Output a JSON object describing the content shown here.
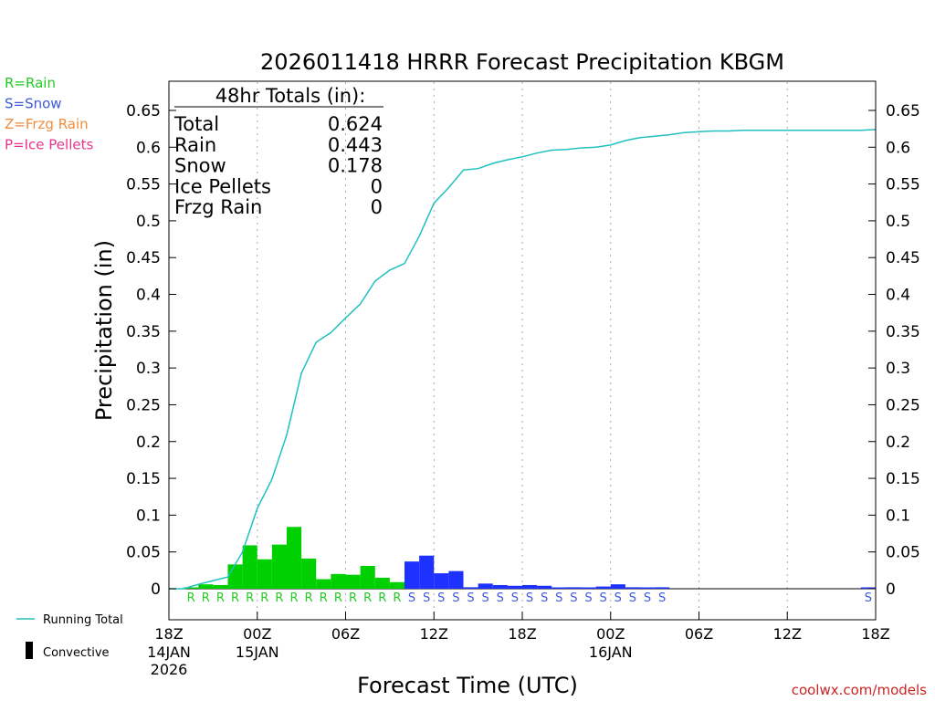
{
  "chart_data": {
    "type": "bar",
    "title": "2026011418 HRRR Forecast Precipitation KBGM",
    "xlabel": "Forecast Time (UTC)",
    "ylabel": "Precipitation (in)",
    "ylim": [
      0,
      0.68
    ],
    "xlim_hours": [
      0,
      48
    ],
    "grid": "vertical dotted every 6h",
    "y_ticks": [
      "0",
      "0.05",
      "0.1",
      "0.15",
      "0.2",
      "0.25",
      "0.3",
      "0.35",
      "0.4",
      "0.45",
      "0.5",
      "0.55",
      "0.6",
      "0.65"
    ],
    "x_ticks": [
      {
        "hour": 0,
        "label": "18Z",
        "date": "14JAN",
        "year": "2026"
      },
      {
        "hour": 6,
        "label": "00Z",
        "date": "15JAN",
        "year": ""
      },
      {
        "hour": 12,
        "label": "06Z",
        "date": "",
        "year": ""
      },
      {
        "hour": 18,
        "label": "12Z",
        "date": "",
        "year": ""
      },
      {
        "hour": 24,
        "label": "18Z",
        "date": "",
        "year": ""
      },
      {
        "hour": 30,
        "label": "00Z",
        "date": "16JAN",
        "year": ""
      },
      {
        "hour": 36,
        "label": "06Z",
        "date": "",
        "year": ""
      },
      {
        "hour": 42,
        "label": "12Z",
        "date": "",
        "year": ""
      },
      {
        "hour": 48,
        "label": "18Z",
        "date": "",
        "year": ""
      }
    ],
    "hourly_precip": [
      0,
      0.001,
      0.006,
      0.005,
      0.033,
      0.059,
      0.04,
      0.06,
      0.084,
      0.041,
      0.013,
      0.02,
      0.019,
      0.031,
      0.015,
      0.009,
      0.037,
      0.045,
      0.021,
      0.024,
      0.002,
      0.007,
      0.005,
      0.004,
      0.005,
      0.004,
      0.001,
      0.002,
      0.001,
      0.003,
      0.006,
      0.002,
      0.001,
      0.002,
      0,
      0,
      0,
      0,
      0,
      0,
      0,
      0,
      0,
      0,
      0,
      0,
      0,
      0.001
    ],
    "hourly_type": [
      "",
      "R",
      "R",
      "R",
      "R",
      "R",
      "R",
      "R",
      "R",
      "R",
      "R",
      "R",
      "R",
      "R",
      "R",
      "R",
      "S",
      "S",
      "S",
      "S",
      "S",
      "S",
      "S",
      "S",
      "S",
      "S",
      "S",
      "S",
      "S",
      "S",
      "S",
      "S",
      "S",
      "S",
      "",
      "",
      "",
      "",
      "",
      "",
      "",
      "",
      "",
      "",
      "",
      "",
      "",
      "S"
    ],
    "running_total": [
      0,
      0,
      0.006,
      0.011,
      0.016,
      0.05,
      0.109,
      0.149,
      0.209,
      0.293,
      0.335,
      0.348,
      0.368,
      0.387,
      0.418,
      0.433,
      0.442,
      0.479,
      0.524,
      0.545,
      0.569,
      0.571,
      0.578,
      0.583,
      0.587,
      0.592,
      0.596,
      0.597,
      0.599,
      0.6,
      0.603,
      0.609,
      0.613,
      0.615,
      0.617,
      0.62,
      0.621,
      0.622,
      0.622,
      0.623,
      0.623,
      0.623,
      0.623,
      0.623,
      0.623,
      0.623,
      0.623,
      0.623,
      0.624
    ],
    "totals_box": {
      "heading": "48hr Totals (in):",
      "rows": [
        {
          "label": "Total",
          "value": "0.624"
        },
        {
          "label": "Rain",
          "value": "0.443"
        },
        {
          "label": "Snow",
          "value": "0.178"
        },
        {
          "label": "Ice Pellets",
          "value": "0"
        },
        {
          "label": "Frzg Rain",
          "value": "0"
        }
      ]
    },
    "type_legend": [
      {
        "text": "R=Rain",
        "color": "#22cc22"
      },
      {
        "text": "S=Snow",
        "color": "#3b5bdb"
      },
      {
        "text": "Z=Frzg Rain",
        "color": "#f08c3c"
      },
      {
        "text": "P=Ice Pellets",
        "color": "#e6348c"
      }
    ],
    "series_legend": [
      {
        "name": "Running Total",
        "color": "#20c0c0"
      },
      {
        "name": "Convective",
        "color": "#000000"
      }
    ],
    "colors": {
      "rain_bar": "#00d000",
      "snow_bar": "#1e32ff",
      "rain_letter": "#22cc22",
      "snow_letter": "#3b5bdb",
      "running_total": "#20c0c0",
      "attribution": "#cc2222"
    },
    "attribution": "coolwx.com/models"
  }
}
